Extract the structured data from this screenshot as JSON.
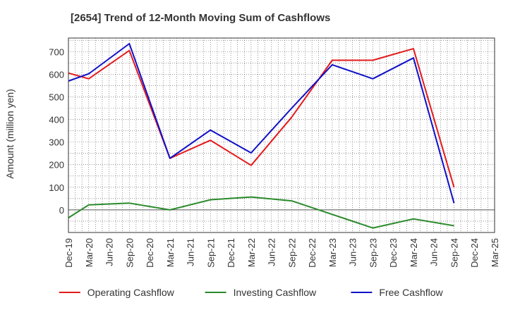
{
  "chart_data": {
    "type": "line",
    "title": "[2654]  Trend of 12-Month Moving Sum of Cashflows",
    "xlabel": "",
    "ylabel": "Amount (million yen)",
    "ylim": [
      -100,
      760
    ],
    "yticks": [
      0,
      100,
      200,
      300,
      400,
      500,
      600,
      700
    ],
    "x_tick_labels": [
      "Dec-19",
      "Mar-20",
      "Jun-20",
      "Sep-20",
      "Dec-20",
      "Mar-21",
      "Jun-21",
      "Sep-21",
      "Dec-21",
      "Mar-22",
      "Jun-22",
      "Sep-22",
      "Dec-22",
      "Mar-23",
      "Jun-23",
      "Sep-23",
      "Dec-23",
      "Mar-24",
      "Jun-24",
      "Sep-24",
      "Dec-24",
      "Mar-25"
    ],
    "grid": true,
    "legend_position": "bottom",
    "series": [
      {
        "name": "Operating Cashflow",
        "color": "#e31a1c",
        "points": [
          {
            "x": "Dec-19",
            "y": 605
          },
          {
            "x": "Mar-20",
            "y": 580
          },
          {
            "x": "Sep-20",
            "y": 705
          },
          {
            "x": "Mar-21",
            "y": 228
          },
          {
            "x": "Sep-21",
            "y": 308
          },
          {
            "x": "Mar-22",
            "y": 197
          },
          {
            "x": "Sep-22",
            "y": 410
          },
          {
            "x": "Mar-23",
            "y": 662
          },
          {
            "x": "Sep-23",
            "y": 662
          },
          {
            "x": "Mar-24",
            "y": 713
          },
          {
            "x": "Sep-24",
            "y": 100
          }
        ]
      },
      {
        "name": "Investing Cashflow",
        "color": "#2a8a2a",
        "points": [
          {
            "x": "Dec-19",
            "y": -35
          },
          {
            "x": "Mar-20",
            "y": 22
          },
          {
            "x": "Sep-20",
            "y": 30
          },
          {
            "x": "Mar-21",
            "y": 0
          },
          {
            "x": "Sep-21",
            "y": 45
          },
          {
            "x": "Mar-22",
            "y": 57
          },
          {
            "x": "Sep-22",
            "y": 40
          },
          {
            "x": "Mar-23",
            "y": -20
          },
          {
            "x": "Sep-23",
            "y": -80
          },
          {
            "x": "Mar-24",
            "y": -40
          },
          {
            "x": "Sep-24",
            "y": -70
          }
        ]
      },
      {
        "name": "Free Cashflow",
        "color": "#1010c8",
        "points": [
          {
            "x": "Dec-19",
            "y": 570
          },
          {
            "x": "Mar-20",
            "y": 602
          },
          {
            "x": "Sep-20",
            "y": 735
          },
          {
            "x": "Mar-21",
            "y": 228
          },
          {
            "x": "Sep-21",
            "y": 353
          },
          {
            "x": "Mar-22",
            "y": 252
          },
          {
            "x": "Sep-22",
            "y": 450
          },
          {
            "x": "Mar-23",
            "y": 642
          },
          {
            "x": "Sep-23",
            "y": 580
          },
          {
            "x": "Mar-24",
            "y": 672
          },
          {
            "x": "Sep-24",
            "y": 30
          }
        ]
      }
    ]
  }
}
